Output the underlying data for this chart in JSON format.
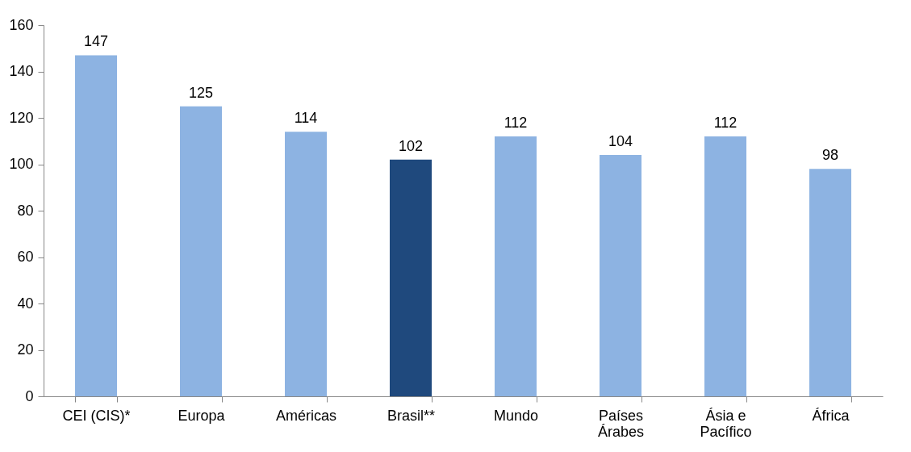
{
  "chart_data": {
    "type": "bar",
    "categories": [
      "CEI (CIS)*",
      "Europa",
      "Américas",
      "Brasil**",
      "Mundo",
      "Países Árabes",
      "Ásia e Pacífico",
      "África"
    ],
    "values": [
      147,
      125,
      114,
      102,
      112,
      104,
      112,
      98
    ],
    "colors": [
      "#8db3e2",
      "#8db3e2",
      "#8db3e2",
      "#1f497d",
      "#8db3e2",
      "#8db3e2",
      "#8db3e2",
      "#8db3e2"
    ],
    "ylim": [
      0,
      160
    ],
    "yticks": [
      0,
      20,
      40,
      60,
      80,
      100,
      120,
      140,
      160
    ],
    "data_labels": true
  }
}
